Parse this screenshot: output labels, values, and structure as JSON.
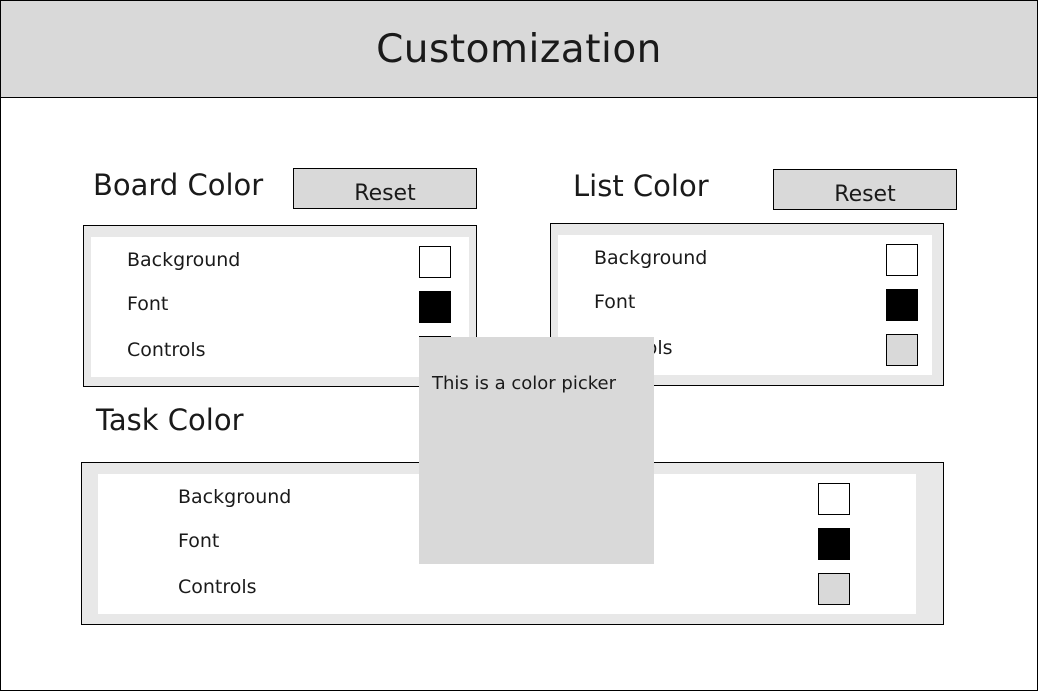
{
  "header": {
    "title": "Customization"
  },
  "board": {
    "title": "Board Color",
    "reset_label": "Reset",
    "rows": [
      {
        "label": "Background",
        "color": "#ffffff"
      },
      {
        "label": "Font",
        "color": "#000000"
      },
      {
        "label": "Controls",
        "color": "#d9d9d9"
      }
    ]
  },
  "list": {
    "title": "List Color",
    "reset_label": "Reset",
    "rows": [
      {
        "label": "Background",
        "color": "#ffffff"
      },
      {
        "label": "Font",
        "color": "#000000"
      },
      {
        "label": "Controls",
        "color": "#d9d9d9"
      }
    ]
  },
  "task": {
    "title": "Task Color",
    "rows": [
      {
        "label": "Background",
        "color": "#ffffff"
      },
      {
        "label": "Font",
        "color": "#000000"
      },
      {
        "label": "Controls",
        "color": "#d9d9d9"
      }
    ]
  },
  "color_picker": {
    "text": "This is a color picker"
  }
}
